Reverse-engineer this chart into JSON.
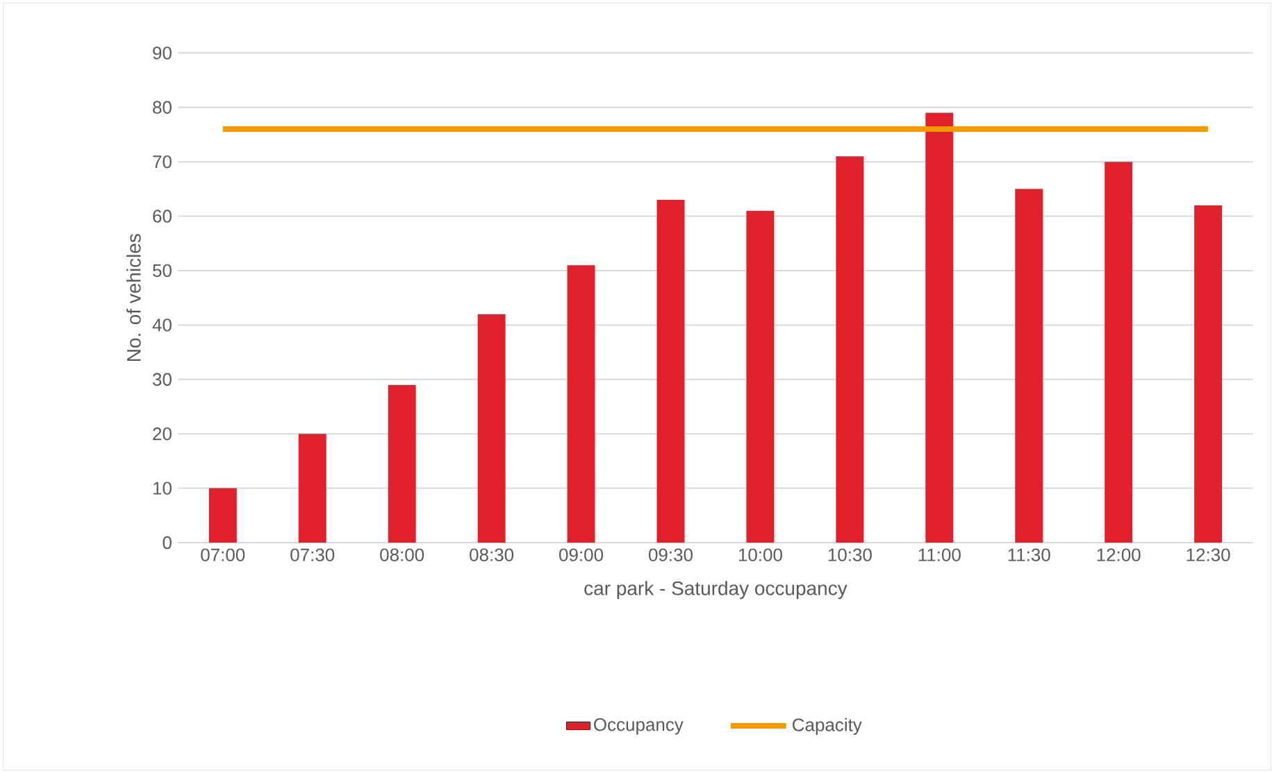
{
  "chart_data": {
    "type": "bar",
    "xlabel": "car park - Saturday occupancy",
    "ylabel": "No. of vehicles",
    "categories": [
      "07:00",
      "07:30",
      "08:00",
      "08:30",
      "09:00",
      "09:30",
      "10:00",
      "10:30",
      "11:00",
      "11:30",
      "12:00",
      "12:30"
    ],
    "series": [
      {
        "name": "Occupancy",
        "color": "#e0202a",
        "values": [
          10,
          20,
          29,
          42,
          51,
          63,
          61,
          71,
          79,
          65,
          70,
          62
        ]
      },
      {
        "name": "Capacity",
        "type": "line",
        "color": "#f79a00",
        "values": [
          76,
          76,
          76,
          76,
          76,
          76,
          76,
          76,
          76,
          76,
          76,
          76
        ]
      }
    ],
    "ylim": [
      0,
      90
    ],
    "yticks": [
      0,
      10,
      20,
      30,
      40,
      50,
      60,
      70,
      80,
      90
    ],
    "grid": "y",
    "legend": "bottom"
  }
}
